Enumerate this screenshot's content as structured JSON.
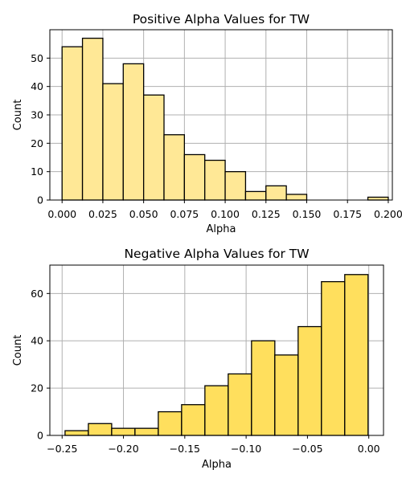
{
  "chart_data": [
    {
      "type": "histogram",
      "title": "Positive Alpha Values for TW",
      "xlabel": "Alpha",
      "ylabel": "Count",
      "bar_color": "#ffe896",
      "xlim": [
        -0.0075,
        0.2025
      ],
      "ylim": [
        0,
        60
      ],
      "xticks": [
        {
          "value": 0.0,
          "label": "0.000"
        },
        {
          "value": 0.025,
          "label": "0.025"
        },
        {
          "value": 0.05,
          "label": "0.050"
        },
        {
          "value": 0.075,
          "label": "0.075"
        },
        {
          "value": 0.1,
          "label": "0.100"
        },
        {
          "value": 0.125,
          "label": "0.125"
        },
        {
          "value": 0.15,
          "label": "0.150"
        },
        {
          "value": 0.175,
          "label": "0.175"
        },
        {
          "value": 0.2,
          "label": "0.200"
        }
      ],
      "yticks": [
        {
          "value": 0,
          "label": "0"
        },
        {
          "value": 10,
          "label": "10"
        },
        {
          "value": 20,
          "label": "20"
        },
        {
          "value": 30,
          "label": "30"
        },
        {
          "value": 40,
          "label": "40"
        },
        {
          "value": 50,
          "label": "50"
        }
      ],
      "grid": true,
      "bins": [
        {
          "start": 0.0,
          "end": 0.0125,
          "count": 54
        },
        {
          "start": 0.0125,
          "end": 0.025,
          "count": 57
        },
        {
          "start": 0.025,
          "end": 0.0375,
          "count": 41
        },
        {
          "start": 0.0375,
          "end": 0.05,
          "count": 48
        },
        {
          "start": 0.05,
          "end": 0.0625,
          "count": 37
        },
        {
          "start": 0.0625,
          "end": 0.075,
          "count": 23
        },
        {
          "start": 0.075,
          "end": 0.0875,
          "count": 16
        },
        {
          "start": 0.0875,
          "end": 0.1,
          "count": 14
        },
        {
          "start": 0.1,
          "end": 0.1125,
          "count": 10
        },
        {
          "start": 0.1125,
          "end": 0.125,
          "count": 3
        },
        {
          "start": 0.125,
          "end": 0.1375,
          "count": 5
        },
        {
          "start": 0.1375,
          "end": 0.15,
          "count": 2
        },
        {
          "start": 0.15,
          "end": 0.1625,
          "count": 0
        },
        {
          "start": 0.1625,
          "end": 0.175,
          "count": 0
        },
        {
          "start": 0.175,
          "end": 0.1875,
          "count": 0
        },
        {
          "start": 0.1875,
          "end": 0.2,
          "count": 1
        }
      ]
    },
    {
      "type": "histogram",
      "title": "Negative Alpha Values for TW",
      "xlabel": "Alpha",
      "ylabel": "Count",
      "bar_color": "#ffdf5d",
      "xlim": [
        -0.26,
        0.012
      ],
      "ylim": [
        0,
        72
      ],
      "xticks": [
        {
          "value": -0.25,
          "label": "−0.25"
        },
        {
          "value": -0.2,
          "label": "−0.20"
        },
        {
          "value": -0.15,
          "label": "−0.15"
        },
        {
          "value": -0.1,
          "label": "−0.10"
        },
        {
          "value": -0.05,
          "label": "−0.05"
        },
        {
          "value": 0.0,
          "label": "0.00"
        }
      ],
      "yticks": [
        {
          "value": 0,
          "label": "0"
        },
        {
          "value": 20,
          "label": "20"
        },
        {
          "value": 40,
          "label": "40"
        },
        {
          "value": 60,
          "label": "60"
        }
      ],
      "grid": true,
      "bins": [
        {
          "start": -0.2476,
          "end": -0.2286,
          "count": 2
        },
        {
          "start": -0.2286,
          "end": -0.2096,
          "count": 5
        },
        {
          "start": -0.2096,
          "end": -0.1906,
          "count": 3
        },
        {
          "start": -0.1906,
          "end": -0.1716,
          "count": 3
        },
        {
          "start": -0.1716,
          "end": -0.1526,
          "count": 10
        },
        {
          "start": -0.1526,
          "end": -0.1336,
          "count": 13
        },
        {
          "start": -0.1336,
          "end": -0.1146,
          "count": 21
        },
        {
          "start": -0.1146,
          "end": -0.0956,
          "count": 26
        },
        {
          "start": -0.0956,
          "end": -0.0766,
          "count": 40
        },
        {
          "start": -0.0766,
          "end": -0.0576,
          "count": 34
        },
        {
          "start": -0.0576,
          "end": -0.0386,
          "count": 46
        },
        {
          "start": -0.0386,
          "end": -0.0196,
          "count": 65
        },
        {
          "start": -0.0196,
          "end": -0.0006,
          "count": 68
        }
      ]
    }
  ]
}
